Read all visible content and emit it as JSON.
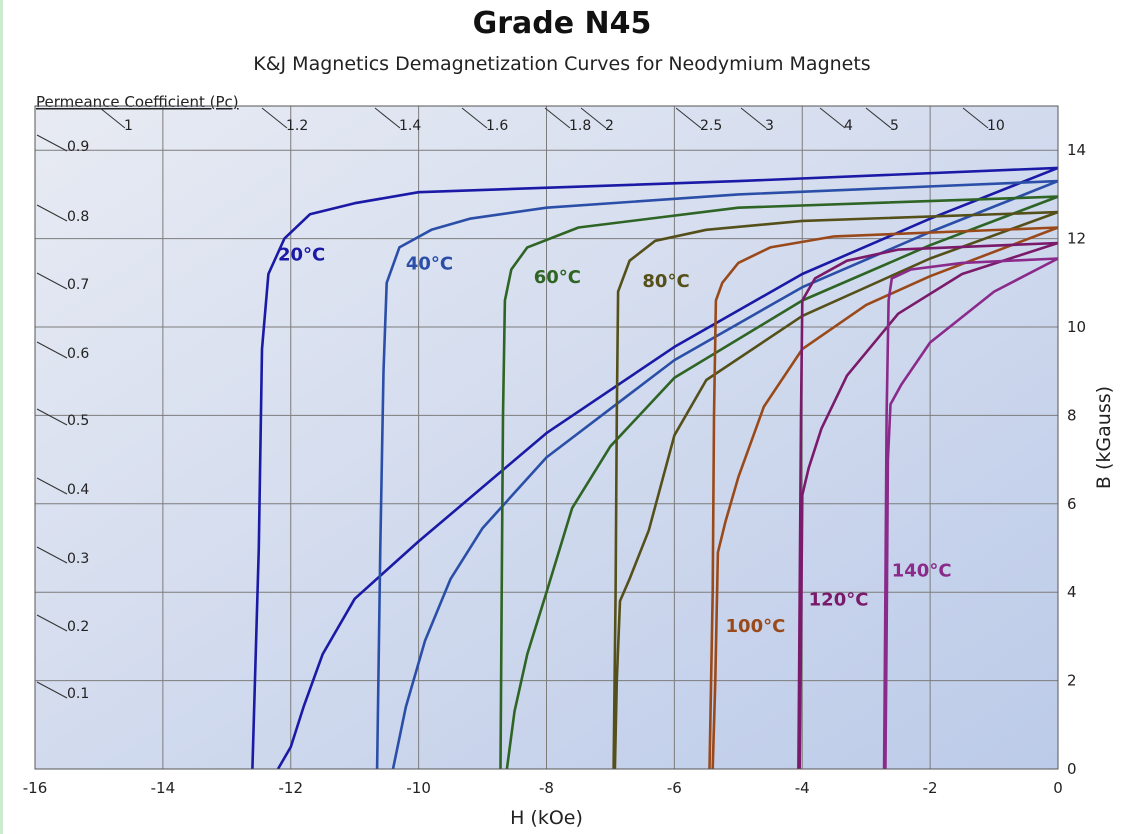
{
  "chart_data": {
    "type": "line",
    "title": "Grade N45",
    "subtitle": "K&J Magnetics Demagnetization Curves for Neodymium Magnets",
    "xlabel": "H (kOe)",
    "ylabel": "B (kGauss)",
    "xlim": [
      -16,
      0
    ],
    "ylim": [
      0,
      15
    ],
    "xticks": [
      -16,
      -14,
      -12,
      -10,
      -8,
      -6,
      -4,
      -2,
      0
    ],
    "yticks": [
      0,
      2,
      4,
      6,
      8,
      10,
      12,
      14
    ],
    "grid": true,
    "pc_axis_label": "Permeance Coefficient (Pc)",
    "pc_top_labels": [
      "1",
      "1.2",
      "1.4",
      "1.6",
      "1.8",
      "2",
      "2.5",
      "3",
      "4",
      "5",
      "10"
    ],
    "pc_left_labels": [
      "0.9",
      "0.8",
      "0.7",
      "0.6",
      "0.5",
      "0.4",
      "0.3",
      "0.2",
      "0.1"
    ],
    "series": [
      {
        "name": "20°C",
        "color": "#1a1aa6",
        "label_at": [
          -12.2,
          11.5
        ],
        "bh": [
          [
            0,
            13.6
          ],
          [
            -5,
            13.3
          ],
          [
            -10,
            13.05
          ],
          [
            -11,
            12.8
          ],
          [
            -11.7,
            12.55
          ],
          [
            -12.1,
            12.0
          ],
          [
            -12.35,
            11.2
          ],
          [
            -12.45,
            9.5
          ],
          [
            -12.5,
            5.0
          ],
          [
            -12.6,
            0
          ]
        ],
        "intrinsic": [
          [
            0,
            13.6
          ],
          [
            -2,
            12.45
          ],
          [
            -4,
            11.2
          ],
          [
            -6,
            9.55
          ],
          [
            -8,
            7.6
          ],
          [
            -10,
            5.15
          ],
          [
            -11,
            3.85
          ],
          [
            -11.5,
            2.6
          ],
          [
            -11.8,
            1.4
          ],
          [
            -12.0,
            0.5
          ],
          [
            -12.2,
            0
          ]
        ]
      },
      {
        "name": "40°C",
        "color": "#2b4fa8",
        "label_at": [
          -10.2,
          11.3
        ],
        "bh": [
          [
            0,
            13.3
          ],
          [
            -5,
            13.0
          ],
          [
            -8,
            12.7
          ],
          [
            -9.2,
            12.45
          ],
          [
            -9.8,
            12.2
          ],
          [
            -10.3,
            11.8
          ],
          [
            -10.5,
            11.0
          ],
          [
            -10.55,
            9.0
          ],
          [
            -10.6,
            5.0
          ],
          [
            -10.65,
            0
          ]
        ],
        "intrinsic": [
          [
            0,
            13.3
          ],
          [
            -2,
            12.15
          ],
          [
            -4,
            10.9
          ],
          [
            -6,
            9.25
          ],
          [
            -8,
            7.05
          ],
          [
            -9,
            5.45
          ],
          [
            -9.5,
            4.3
          ],
          [
            -9.9,
            2.9
          ],
          [
            -10.2,
            1.4
          ],
          [
            -10.4,
            0
          ]
        ]
      },
      {
        "name": "60°C",
        "color": "#2e6424",
        "label_at": [
          -8.2,
          11.0
        ],
        "bh": [
          [
            0,
            12.95
          ],
          [
            -5,
            12.7
          ],
          [
            -7.5,
            12.25
          ],
          [
            -8.3,
            11.8
          ],
          [
            -8.55,
            11.3
          ],
          [
            -8.65,
            10.6
          ],
          [
            -8.68,
            8.0
          ],
          [
            -8.7,
            4.0
          ],
          [
            -8.72,
            0
          ]
        ],
        "intrinsic": [
          [
            0,
            12.95
          ],
          [
            -2,
            11.85
          ],
          [
            -4,
            10.6
          ],
          [
            -6,
            8.85
          ],
          [
            -7,
            7.3
          ],
          [
            -7.6,
            5.9
          ],
          [
            -8.0,
            4.0
          ],
          [
            -8.3,
            2.6
          ],
          [
            -8.5,
            1.3
          ],
          [
            -8.62,
            0
          ]
        ]
      },
      {
        "name": "80°C",
        "color": "#55501a",
        "label_at": [
          -6.5,
          10.9
        ],
        "bh": [
          [
            0,
            12.6
          ],
          [
            -4,
            12.4
          ],
          [
            -5.5,
            12.2
          ],
          [
            -6.3,
            11.95
          ],
          [
            -6.7,
            11.5
          ],
          [
            -6.88,
            10.8
          ],
          [
            -6.9,
            8.0
          ],
          [
            -6.92,
            4.0
          ],
          [
            -6.95,
            0
          ]
        ],
        "intrinsic": [
          [
            0,
            12.6
          ],
          [
            -2,
            11.55
          ],
          [
            -4,
            10.25
          ],
          [
            -5.5,
            8.8
          ],
          [
            -6.0,
            7.55
          ],
          [
            -6.4,
            5.4
          ],
          [
            -6.7,
            4.3
          ],
          [
            -6.85,
            3.8
          ],
          [
            -6.9,
            2.0
          ],
          [
            -6.93,
            0
          ]
        ]
      },
      {
        "name": "100°C",
        "color": "#9a4a1a",
        "label_at": [
          -5.2,
          3.1
        ],
        "bh": [
          [
            0,
            12.25
          ],
          [
            -3.5,
            12.05
          ],
          [
            -4.5,
            11.8
          ],
          [
            -5.0,
            11.45
          ],
          [
            -5.25,
            11.0
          ],
          [
            -5.35,
            10.6
          ],
          [
            -5.38,
            8.0
          ],
          [
            -5.4,
            4.0
          ],
          [
            -5.45,
            0
          ]
        ],
        "intrinsic": [
          [
            0,
            12.25
          ],
          [
            -2,
            11.15
          ],
          [
            -3,
            10.5
          ],
          [
            -4,
            9.5
          ],
          [
            -4.6,
            8.2
          ],
          [
            -5.0,
            6.6
          ],
          [
            -5.2,
            5.6
          ],
          [
            -5.32,
            4.9
          ],
          [
            -5.36,
            2.0
          ],
          [
            -5.4,
            0
          ]
        ]
      },
      {
        "name": "120°C",
        "color": "#7a1a6a",
        "label_at": [
          -3.9,
          3.7
        ],
        "bh": [
          [
            0,
            11.9
          ],
          [
            -2.5,
            11.75
          ],
          [
            -3.3,
            11.5
          ],
          [
            -3.8,
            11.1
          ],
          [
            -4.0,
            10.6
          ],
          [
            -4.02,
            8.0
          ],
          [
            -4.04,
            4.0
          ],
          [
            -4.06,
            0
          ]
        ],
        "intrinsic": [
          [
            0,
            11.9
          ],
          [
            -1.5,
            11.2
          ],
          [
            -2.5,
            10.3
          ],
          [
            -3.3,
            8.9
          ],
          [
            -3.7,
            7.7
          ],
          [
            -3.9,
            6.8
          ],
          [
            -4.0,
            6.2
          ],
          [
            -4.02,
            3.0
          ],
          [
            -4.04,
            0
          ]
        ]
      },
      {
        "name": "140°C",
        "color": "#8a2a8a",
        "label_at": [
          -2.6,
          4.35
        ],
        "bh": [
          [
            0,
            11.55
          ],
          [
            -1.5,
            11.45
          ],
          [
            -2.3,
            11.3
          ],
          [
            -2.6,
            11.1
          ],
          [
            -2.65,
            10.6
          ],
          [
            -2.68,
            8.0
          ],
          [
            -2.7,
            4.0
          ],
          [
            -2.72,
            0
          ]
        ],
        "intrinsic": [
          [
            0,
            11.55
          ],
          [
            -1,
            10.8
          ],
          [
            -2,
            9.65
          ],
          [
            -2.45,
            8.7
          ],
          [
            -2.62,
            8.25
          ],
          [
            -2.66,
            7.0
          ],
          [
            -2.68,
            3.0
          ],
          [
            -2.7,
            0
          ]
        ]
      }
    ]
  }
}
